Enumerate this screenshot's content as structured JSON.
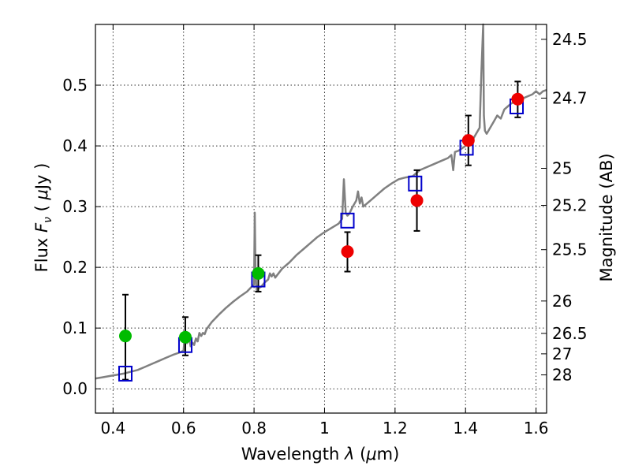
{
  "chart_data": {
    "type": "scatter",
    "xlabel_parts": [
      "Wavelength  ",
      "λ",
      " (",
      "μ",
      "m)"
    ],
    "ylabel_parts": [
      "Flux  ",
      "F",
      "ν",
      "  ( ",
      "μ",
      "Jy )"
    ],
    "y2label": "Magnitude (AB)",
    "xlim": [
      0.35,
      1.63
    ],
    "ylim": [
      -0.04,
      0.6
    ],
    "grid": true,
    "x_ticks": [
      {
        "value": 0.4,
        "label": "0.4"
      },
      {
        "value": 0.6,
        "label": "0.6"
      },
      {
        "value": 0.8,
        "label": "0.8"
      },
      {
        "value": 1.0,
        "label": "1"
      },
      {
        "value": 1.2,
        "label": "1.2"
      },
      {
        "value": 1.4,
        "label": "1.4"
      },
      {
        "value": 1.6,
        "label": "1.6"
      }
    ],
    "y_ticks": [
      {
        "value": 0.0,
        "label": "0.0"
      },
      {
        "value": 0.1,
        "label": "0.1"
      },
      {
        "value": 0.2,
        "label": "0.2"
      },
      {
        "value": 0.3,
        "label": "0.3"
      },
      {
        "value": 0.4,
        "label": "0.4"
      },
      {
        "value": 0.5,
        "label": "0.5"
      }
    ],
    "mag_ticks": [
      {
        "mag": 24.5,
        "label": "24.5"
      },
      {
        "mag": 24.7,
        "label": "24.7"
      },
      {
        "mag": 25.0,
        "label": "25"
      },
      {
        "mag": 25.2,
        "label": "25.2"
      },
      {
        "mag": 25.5,
        "label": "25.5"
      },
      {
        "mag": 26.0,
        "label": "26"
      },
      {
        "mag": 26.5,
        "label": "26.5"
      },
      {
        "mag": 27.0,
        "label": "27"
      },
      {
        "mag": 28.0,
        "label": "28"
      }
    ],
    "colors": {
      "spectrum": "#808080",
      "model_box": "#0000cc",
      "green": "#00bb00",
      "red": "#ee0000",
      "errorbar": "#000000"
    },
    "spectrum": {
      "x": [
        0.35,
        0.37,
        0.39,
        0.41,
        0.43,
        0.45,
        0.47,
        0.49,
        0.51,
        0.53,
        0.55,
        0.57,
        0.59,
        0.6,
        0.605,
        0.61,
        0.615,
        0.62,
        0.625,
        0.63,
        0.635,
        0.64,
        0.645,
        0.65,
        0.655,
        0.66,
        0.665,
        0.67,
        0.68,
        0.7,
        0.72,
        0.74,
        0.76,
        0.78,
        0.79,
        0.8,
        0.802,
        0.804,
        0.806,
        0.808,
        0.81,
        0.82,
        0.83,
        0.84,
        0.845,
        0.85,
        0.855,
        0.86,
        0.88,
        0.9,
        0.92,
        0.94,
        0.96,
        0.98,
        1.0,
        1.02,
        1.04,
        1.05,
        1.055,
        1.06,
        1.065,
        1.07,
        1.08,
        1.09,
        1.095,
        1.1,
        1.105,
        1.11,
        1.13,
        1.15,
        1.17,
        1.19,
        1.21,
        1.23,
        1.25,
        1.27,
        1.29,
        1.31,
        1.33,
        1.35,
        1.36,
        1.365,
        1.37,
        1.38,
        1.4,
        1.42,
        1.43,
        1.44,
        1.445,
        1.45,
        1.452,
        1.455,
        1.46,
        1.47,
        1.48,
        1.49,
        1.5,
        1.51,
        1.52,
        1.53,
        1.55,
        1.57,
        1.59,
        1.6,
        1.61,
        1.62,
        1.63
      ],
      "y": [
        0.017,
        0.019,
        0.021,
        0.023,
        0.025,
        0.028,
        0.031,
        0.036,
        0.041,
        0.046,
        0.051,
        0.056,
        0.06,
        0.063,
        0.095,
        0.075,
        0.088,
        0.07,
        0.076,
        0.072,
        0.083,
        0.078,
        0.092,
        0.087,
        0.092,
        0.09,
        0.098,
        0.102,
        0.11,
        0.122,
        0.133,
        0.143,
        0.152,
        0.16,
        0.166,
        0.172,
        0.29,
        0.2,
        0.172,
        0.16,
        0.165,
        0.168,
        0.175,
        0.18,
        0.19,
        0.185,
        0.19,
        0.183,
        0.198,
        0.208,
        0.22,
        0.23,
        0.24,
        0.25,
        0.258,
        0.265,
        0.272,
        0.28,
        0.345,
        0.29,
        0.285,
        0.288,
        0.3,
        0.31,
        0.325,
        0.305,
        0.315,
        0.3,
        0.31,
        0.32,
        0.33,
        0.338,
        0.345,
        0.348,
        0.35,
        0.36,
        0.365,
        0.37,
        0.375,
        0.38,
        0.385,
        0.36,
        0.39,
        0.392,
        0.4,
        0.41,
        0.42,
        0.43,
        0.52,
        0.61,
        0.45,
        0.425,
        0.42,
        0.43,
        0.44,
        0.45,
        0.445,
        0.46,
        0.465,
        0.47,
        0.475,
        0.48,
        0.485,
        0.49,
        0.485,
        0.49,
        0.492
      ]
    },
    "model_boxes": [
      {
        "x": 0.435,
        "y": 0.025
      },
      {
        "x": 0.605,
        "y": 0.072
      },
      {
        "x": 0.812,
        "y": 0.18
      },
      {
        "x": 1.065,
        "y": 0.277
      },
      {
        "x": 1.257,
        "y": 0.338
      },
      {
        "x": 1.403,
        "y": 0.397
      },
      {
        "x": 1.545,
        "y": 0.465
      }
    ],
    "observed_green": [
      {
        "x": 0.435,
        "y": 0.087,
        "ylo": 0.015,
        "yhi": 0.155
      },
      {
        "x": 0.605,
        "y": 0.085,
        "ylo": 0.055,
        "yhi": 0.118
      },
      {
        "x": 0.812,
        "y": 0.19,
        "ylo": 0.16,
        "yhi": 0.22
      }
    ],
    "observed_red": [
      {
        "x": 1.065,
        "y": 0.226,
        "ylo": 0.193,
        "yhi": 0.258
      },
      {
        "x": 1.262,
        "y": 0.31,
        "ylo": 0.26,
        "yhi": 0.36
      },
      {
        "x": 1.408,
        "y": 0.409,
        "ylo": 0.368,
        "yhi": 0.45
      },
      {
        "x": 1.548,
        "y": 0.477,
        "ylo": 0.447,
        "yhi": 0.506
      }
    ]
  }
}
